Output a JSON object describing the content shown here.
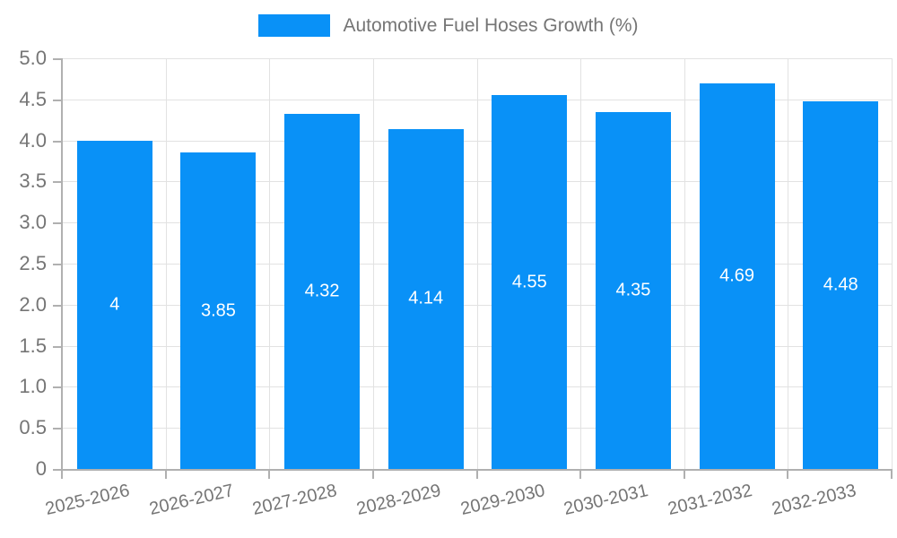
{
  "chart_data": {
    "type": "bar",
    "title": "",
    "series_name": "Automotive Fuel Hoses Growth (%)",
    "categories": [
      "2025-2026",
      "2026-2027",
      "2027-2028",
      "2028-2029",
      "2029-2030",
      "2030-2031",
      "2031-2032",
      "2032-2033"
    ],
    "values": [
      4,
      3.85,
      4.32,
      4.14,
      4.55,
      4.35,
      4.69,
      4.48
    ],
    "value_labels": [
      "4",
      "3.85",
      "4.32",
      "4.14",
      "4.55",
      "4.35",
      "4.69",
      "4.48"
    ],
    "xlabel": "",
    "ylabel": "",
    "ylim": [
      0,
      5
    ],
    "ytick_step": 0.5,
    "ytick_labels": [
      "0",
      "0.5",
      "1.0",
      "1.5",
      "2.0",
      "2.5",
      "3.0",
      "3.5",
      "4.0",
      "4.5",
      "5.0"
    ],
    "grid": true,
    "legend_position": "top-center",
    "x_label_rotation_deg": -13,
    "colors": {
      "bar": "#0991F7",
      "grid": "#e2e2e2",
      "axis": "#b0b0b0",
      "tick_text": "#757575",
      "value_label_text": "#ffffff",
      "legend_text": "#757575",
      "background": "#ffffff"
    }
  }
}
